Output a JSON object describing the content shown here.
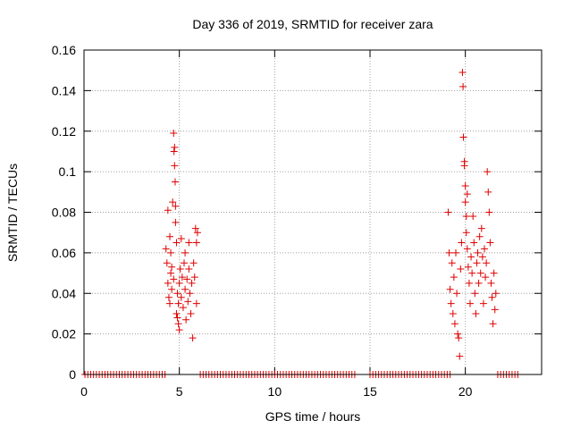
{
  "chart_data": {
    "type": "scatter",
    "title": "Day 336 of 2019, SRMTID for receiver zara",
    "xlabel": "GPS time / hours",
    "ylabel": "SRMTID / TECUs",
    "xlim": [
      0,
      24
    ],
    "ylim": [
      0,
      0.16
    ],
    "xticks": [
      0,
      5,
      10,
      15,
      20
    ],
    "xtick_labels": [
      "0",
      "5",
      "10",
      "15",
      "20"
    ],
    "yticks": [
      0,
      0.02,
      0.04,
      0.06,
      0.08,
      0.1,
      0.12,
      0.14,
      0.16
    ],
    "ytick_labels": [
      "0",
      "0.02",
      "0.04",
      "0.06",
      "0.08",
      "0.1",
      "0.12",
      "0.14",
      "0.16"
    ],
    "grid": true,
    "marker": "+",
    "marker_color": "#e00000",
    "series": [
      {
        "name": "SRMTID",
        "points": [
          [
            0.05,
            0
          ],
          [
            0.2,
            0
          ],
          [
            0.35,
            0
          ],
          [
            0.5,
            0
          ],
          [
            0.65,
            0
          ],
          [
            0.8,
            0
          ],
          [
            0.95,
            0
          ],
          [
            1.1,
            0
          ],
          [
            1.25,
            0
          ],
          [
            1.4,
            0
          ],
          [
            1.55,
            0
          ],
          [
            1.7,
            0
          ],
          [
            1.85,
            0
          ],
          [
            2.0,
            0
          ],
          [
            2.15,
            0
          ],
          [
            2.3,
            0
          ],
          [
            2.45,
            0
          ],
          [
            2.6,
            0
          ],
          [
            2.75,
            0
          ],
          [
            2.9,
            0
          ],
          [
            3.05,
            0
          ],
          [
            3.2,
            0
          ],
          [
            3.35,
            0
          ],
          [
            3.5,
            0
          ],
          [
            3.65,
            0
          ],
          [
            3.8,
            0
          ],
          [
            3.95,
            0
          ],
          [
            4.1,
            0
          ],
          [
            4.25,
            0
          ],
          [
            6.1,
            0
          ],
          [
            6.25,
            0
          ],
          [
            6.4,
            0
          ],
          [
            6.55,
            0
          ],
          [
            6.7,
            0
          ],
          [
            6.85,
            0
          ],
          [
            7.0,
            0
          ],
          [
            7.15,
            0
          ],
          [
            7.3,
            0
          ],
          [
            7.45,
            0
          ],
          [
            7.6,
            0
          ],
          [
            7.75,
            0
          ],
          [
            7.9,
            0
          ],
          [
            8.05,
            0
          ],
          [
            8.2,
            0
          ],
          [
            8.35,
            0
          ],
          [
            8.5,
            0
          ],
          [
            8.65,
            0
          ],
          [
            8.8,
            0
          ],
          [
            8.95,
            0
          ],
          [
            9.1,
            0
          ],
          [
            9.25,
            0
          ],
          [
            9.4,
            0
          ],
          [
            9.55,
            0
          ],
          [
            9.7,
            0
          ],
          [
            9.85,
            0
          ],
          [
            10.0,
            0
          ],
          [
            10.15,
            0
          ],
          [
            10.3,
            0
          ],
          [
            10.45,
            0
          ],
          [
            10.6,
            0
          ],
          [
            10.75,
            0
          ],
          [
            10.9,
            0
          ],
          [
            11.05,
            0
          ],
          [
            11.2,
            0
          ],
          [
            11.35,
            0
          ],
          [
            11.5,
            0
          ],
          [
            11.65,
            0
          ],
          [
            11.8,
            0
          ],
          [
            11.95,
            0
          ],
          [
            12.1,
            0
          ],
          [
            12.25,
            0
          ],
          [
            12.4,
            0
          ],
          [
            12.55,
            0
          ],
          [
            12.7,
            0
          ],
          [
            12.85,
            0
          ],
          [
            13.0,
            0
          ],
          [
            13.15,
            0
          ],
          [
            13.3,
            0
          ],
          [
            13.45,
            0
          ],
          [
            13.6,
            0
          ],
          [
            13.75,
            0
          ],
          [
            13.9,
            0
          ],
          [
            14.05,
            0
          ],
          [
            14.2,
            0
          ],
          [
            15.0,
            0
          ],
          [
            15.15,
            0
          ],
          [
            15.3,
            0
          ],
          [
            15.45,
            0
          ],
          [
            15.6,
            0
          ],
          [
            15.75,
            0
          ],
          [
            15.9,
            0
          ],
          [
            16.05,
            0
          ],
          [
            16.2,
            0
          ],
          [
            16.35,
            0
          ],
          [
            16.5,
            0
          ],
          [
            16.65,
            0
          ],
          [
            16.8,
            0
          ],
          [
            16.95,
            0
          ],
          [
            17.1,
            0
          ],
          [
            17.25,
            0
          ],
          [
            17.4,
            0
          ],
          [
            17.55,
            0
          ],
          [
            17.7,
            0
          ],
          [
            17.85,
            0
          ],
          [
            18.0,
            0
          ],
          [
            18.15,
            0
          ],
          [
            18.3,
            0
          ],
          [
            18.45,
            0
          ],
          [
            18.6,
            0
          ],
          [
            18.75,
            0
          ],
          [
            18.9,
            0
          ],
          [
            19.05,
            0
          ],
          [
            19.2,
            0
          ],
          [
            21.7,
            0
          ],
          [
            21.85,
            0
          ],
          [
            22.0,
            0
          ],
          [
            22.15,
            0
          ],
          [
            22.3,
            0
          ],
          [
            22.45,
            0
          ],
          [
            22.6,
            0
          ],
          [
            22.75,
            0
          ],
          [
            4.3,
            0.062
          ],
          [
            4.35,
            0.055
          ],
          [
            4.4,
            0.045
          ],
          [
            4.4,
            0.081
          ],
          [
            4.45,
            0.038
          ],
          [
            4.5,
            0.035
          ],
          [
            4.5,
            0.068
          ],
          [
            4.55,
            0.05
          ],
          [
            4.55,
            0.06
          ],
          [
            4.6,
            0.053
          ],
          [
            4.6,
            0.042
          ],
          [
            4.65,
            0.085
          ],
          [
            4.7,
            0.047
          ],
          [
            4.7,
            0.119
          ],
          [
            4.72,
            0.11
          ],
          [
            4.75,
            0.112
          ],
          [
            4.75,
            0.103
          ],
          [
            4.78,
            0.095
          ],
          [
            4.8,
            0.083
          ],
          [
            4.8,
            0.075
          ],
          [
            4.85,
            0.065
          ],
          [
            4.85,
            0.03
          ],
          [
            4.9,
            0.028
          ],
          [
            4.9,
            0.04
          ],
          [
            4.95,
            0.025
          ],
          [
            4.95,
            0.035
          ],
          [
            5.0,
            0.045
          ],
          [
            5.0,
            0.022
          ],
          [
            5.05,
            0.052
          ],
          [
            5.1,
            0.038
          ],
          [
            5.1,
            0.067
          ],
          [
            5.15,
            0.048
          ],
          [
            5.2,
            0.033
          ],
          [
            5.25,
            0.055
          ],
          [
            5.3,
            0.06
          ],
          [
            5.3,
            0.042
          ],
          [
            5.35,
            0.027
          ],
          [
            5.4,
            0.047
          ],
          [
            5.45,
            0.036
          ],
          [
            5.5,
            0.052
          ],
          [
            5.5,
            0.065
          ],
          [
            5.55,
            0.04
          ],
          [
            5.6,
            0.03
          ],
          [
            5.65,
            0.045
          ],
          [
            5.7,
            0.018
          ],
          [
            5.75,
            0.055
          ],
          [
            5.8,
            0.048
          ],
          [
            5.85,
            0.072
          ],
          [
            5.9,
            0.065
          ],
          [
            5.9,
            0.035
          ],
          [
            5.95,
            0.07
          ],
          [
            19.1,
            0.08
          ],
          [
            19.15,
            0.06
          ],
          [
            19.2,
            0.042
          ],
          [
            19.25,
            0.035
          ],
          [
            19.3,
            0.055
          ],
          [
            19.35,
            0.03
          ],
          [
            19.4,
            0.048
          ],
          [
            19.45,
            0.025
          ],
          [
            19.5,
            0.06
          ],
          [
            19.55,
            0.04
          ],
          [
            19.6,
            0.02
          ],
          [
            19.65,
            0.018
          ],
          [
            19.7,
            0.009
          ],
          [
            19.75,
            0.052
          ],
          [
            19.8,
            0.065
          ],
          [
            19.85,
            0.149
          ],
          [
            19.88,
            0.142
          ],
          [
            19.9,
            0.117
          ],
          [
            19.95,
            0.103
          ],
          [
            19.95,
            0.105
          ],
          [
            20.0,
            0.093
          ],
          [
            20.0,
            0.085
          ],
          [
            20.05,
            0.078
          ],
          [
            20.05,
            0.07
          ],
          [
            20.1,
            0.062
          ],
          [
            20.1,
            0.089
          ],
          [
            20.15,
            0.053
          ],
          [
            20.2,
            0.045
          ],
          [
            20.25,
            0.035
          ],
          [
            20.3,
            0.058
          ],
          [
            20.35,
            0.05
          ],
          [
            20.4,
            0.078
          ],
          [
            20.45,
            0.065
          ],
          [
            20.5,
            0.04
          ],
          [
            20.55,
            0.03
          ],
          [
            20.6,
            0.055
          ],
          [
            20.65,
            0.06
          ],
          [
            20.7,
            0.045
          ],
          [
            20.75,
            0.068
          ],
          [
            20.8,
            0.05
          ],
          [
            20.85,
            0.072
          ],
          [
            20.9,
            0.058
          ],
          [
            20.95,
            0.035
          ],
          [
            21.0,
            0.062
          ],
          [
            21.05,
            0.048
          ],
          [
            21.1,
            0.055
          ],
          [
            21.15,
            0.1
          ],
          [
            21.2,
            0.09
          ],
          [
            21.25,
            0.08
          ],
          [
            21.3,
            0.065
          ],
          [
            21.35,
            0.045
          ],
          [
            21.4,
            0.038
          ],
          [
            21.45,
            0.025
          ],
          [
            21.5,
            0.05
          ],
          [
            21.55,
            0.032
          ],
          [
            21.6,
            0.04
          ]
        ]
      }
    ]
  }
}
